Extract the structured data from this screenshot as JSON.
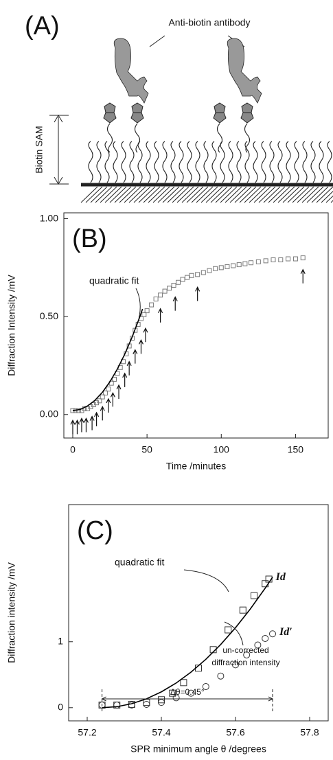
{
  "diagram": {
    "label": "(A)",
    "antibody_label": "Anti-biotin antibody",
    "sam_label": "Biotin SAM"
  },
  "chart_data": [
    {
      "type": "scatter",
      "label": "(B)",
      "x_label": "Time /minutes",
      "y_label": "Diffraction Intensity /mV",
      "xlim": [
        -6,
        172
      ],
      "ylim": [
        -0.12,
        1.03
      ],
      "xticks": [
        0,
        50,
        100,
        150
      ],
      "yticks": [
        {
          "value": 0,
          "label": "0.00"
        },
        {
          "value": 0.5,
          "label": "0.50"
        },
        {
          "value": 1,
          "label": "1.00"
        }
      ],
      "series": [
        {
          "style": "square",
          "color": "#777777",
          "x": [
            0,
            2,
            4,
            6,
            8,
            10,
            12,
            14,
            16,
            18,
            20,
            22,
            24,
            26,
            28,
            30,
            32,
            34,
            36,
            38,
            40,
            42,
            44,
            46,
            48,
            50,
            53,
            56,
            59,
            62,
            65,
            68,
            71,
            74,
            77,
            80,
            84,
            88,
            92,
            96,
            100,
            104,
            108,
            112,
            116,
            120,
            125,
            130,
            135,
            140,
            145,
            150,
            155
          ],
          "values": [
            0.02,
            0.02,
            0.02,
            0.02,
            0.03,
            0.03,
            0.04,
            0.05,
            0.06,
            0.07,
            0.09,
            0.11,
            0.13,
            0.16,
            0.18,
            0.21,
            0.24,
            0.27,
            0.31,
            0.35,
            0.39,
            0.43,
            0.46,
            0.49,
            0.51,
            0.53,
            0.56,
            0.59,
            0.61,
            0.63,
            0.645,
            0.66,
            0.675,
            0.69,
            0.7,
            0.71,
            0.715,
            0.725,
            0.735,
            0.745,
            0.75,
            0.755,
            0.76,
            0.765,
            0.77,
            0.775,
            0.78,
            0.785,
            0.79,
            0.79,
            0.795,
            0.795,
            0.8
          ]
        },
        {
          "style": "line",
          "color": "#000000",
          "x": [
            0,
            5,
            10,
            15,
            20,
            25,
            30,
            35,
            40,
            45,
            47
          ],
          "values": [
            0.02,
            0.026,
            0.044,
            0.073,
            0.114,
            0.167,
            0.232,
            0.308,
            0.396,
            0.496,
            0.539
          ]
        }
      ],
      "arrows": {
        "x": [
          0,
          3,
          6,
          9,
          13,
          16,
          20,
          24,
          27,
          31,
          35,
          38,
          42,
          46,
          49,
          59,
          69,
          84,
          155
        ],
        "y": [
          -0.03,
          -0.03,
          -0.02,
          -0.02,
          -0.01,
          0.01,
          0.04,
          0.08,
          0.11,
          0.15,
          0.21,
          0.27,
          0.33,
          0.38,
          0.44,
          0.54,
          0.6,
          0.65,
          0.74
        ]
      },
      "annotations": [
        {
          "text": "quadratic fit"
        }
      ]
    },
    {
      "type": "scatter",
      "label": "(C)",
      "x_label": "SPR minimum angle θ /degrees",
      "y_label": "Diffraction intensity /mV",
      "xlim": [
        57.15,
        57.85
      ],
      "ylim": [
        -0.2,
        3.08
      ],
      "xticks": [
        57.2,
        57.4,
        57.6,
        57.8
      ],
      "yticks": [
        0,
        1
      ],
      "series": [
        {
          "name": "Id",
          "style": "square",
          "color": "#333333",
          "x": [
            57.24,
            57.28,
            57.32,
            57.36,
            57.4,
            57.43,
            57.46,
            57.5,
            57.54,
            57.58,
            57.62,
            57.65,
            57.68,
            57.69
          ],
          "values": [
            0.04,
            0.04,
            0.05,
            0.08,
            0.12,
            0.22,
            0.38,
            0.6,
            0.88,
            1.18,
            1.48,
            1.7,
            1.88,
            1.95
          ]
        },
        {
          "name": "Id′",
          "style": "circle",
          "color": "#333333",
          "x": [
            57.24,
            57.28,
            57.32,
            57.36,
            57.4,
            57.44,
            57.48,
            57.52,
            57.56,
            57.6,
            57.63,
            57.66,
            57.68,
            57.7
          ],
          "values": [
            0.04,
            0.04,
            0.04,
            0.05,
            0.08,
            0.15,
            0.22,
            0.32,
            0.48,
            0.65,
            0.8,
            0.95,
            1.05,
            1.12
          ]
        },
        {
          "style": "line",
          "color": "#000000",
          "x": [
            57.24,
            57.28,
            57.32,
            57.36,
            57.4,
            57.44,
            57.48,
            57.52,
            57.56,
            57.6,
            57.64,
            57.68,
            57.7
          ],
          "values": [
            0,
            0.015,
            0.06,
            0.135,
            0.24,
            0.374,
            0.539,
            0.734,
            0.958,
            1.213,
            1.497,
            1.812,
            1.98
          ]
        }
      ],
      "bracket": {
        "x": [
          57.24,
          57.7
        ],
        "label": "Δθ=0.45°"
      },
      "annotations": [
        {
          "text": "quadratic fit"
        },
        {
          "lines": [
            "un-corrected",
            "diffraction intensity"
          ]
        }
      ]
    }
  ]
}
